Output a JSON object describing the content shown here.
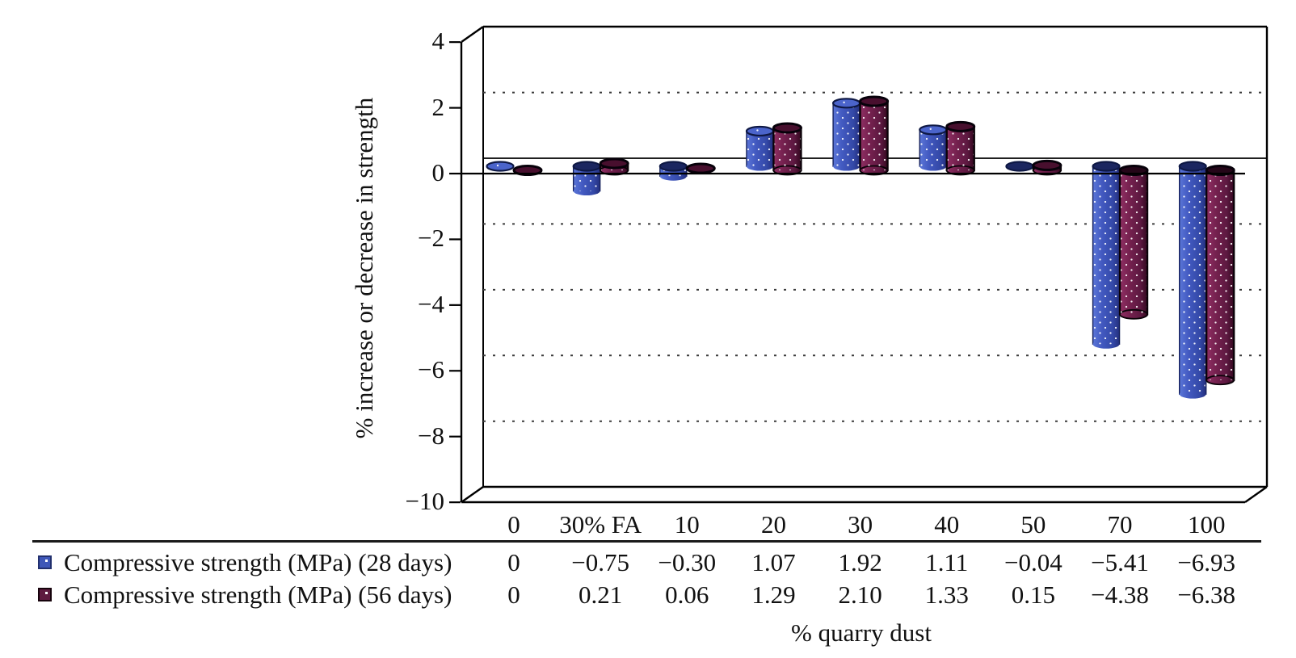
{
  "chart_data": {
    "type": "bar",
    "style": "3d-cylinder",
    "title": "",
    "xlabel": "% quarry dust",
    "ylabel": "% increase or decrease in strength",
    "categories": [
      "0",
      "30% FA",
      "10",
      "20",
      "30",
      "40",
      "50",
      "70",
      "100"
    ],
    "series": [
      {
        "name": "Compressive strength (MPa) (28 days)",
        "color": "#3e57b8",
        "values": [
          0,
          -0.75,
          -0.3,
          1.07,
          1.92,
          1.11,
          -0.04,
          -5.41,
          -6.93
        ],
        "display_values": [
          "0",
          "−0.75",
          "−0.30",
          "1.07",
          "1.92",
          "1.11",
          "−0.04",
          "−5.41",
          "−6.93"
        ]
      },
      {
        "name": "Compressive strength (MPa) (56 days)",
        "color": "#6e1d49",
        "values": [
          0,
          0.21,
          0.06,
          1.29,
          2.1,
          1.33,
          0.15,
          -4.38,
          -6.38
        ],
        "display_values": [
          "0",
          "0.21",
          "0.06",
          "1.29",
          "2.10",
          "1.33",
          "0.15",
          "−4.38",
          "−6.38"
        ]
      }
    ],
    "ylim": [
      -10,
      4
    ],
    "yticks": [
      4,
      2,
      0,
      -2,
      -4,
      -6,
      -8,
      -10
    ],
    "ytick_labels": [
      "4",
      "2",
      "0",
      "−2",
      "−4",
      "−6",
      "−8",
      "−10"
    ],
    "grid": "dotted horizontal gridlines on back wall, solid line at 0",
    "legend_position": "bottom-left, as data table rows"
  }
}
